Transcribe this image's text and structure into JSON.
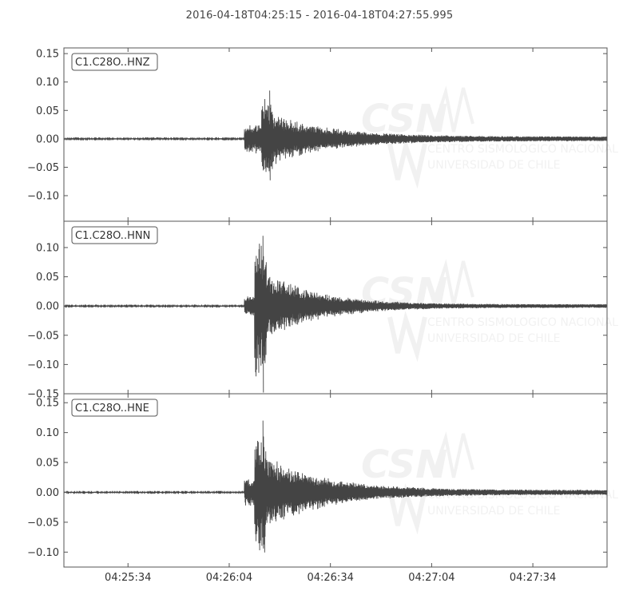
{
  "chart_data": {
    "type": "line",
    "title": "2016-04-18T04:25:15  -  2016-04-18T04:27:55.995",
    "x_tick_labels": [
      "04:25:34",
      "04:26:04",
      "04:26:34",
      "04:27:04",
      "04:27:34"
    ],
    "x_ticks_seconds_after_start": [
      19,
      49,
      79,
      109,
      139
    ],
    "x_range_seconds_after_start": [
      0,
      160.995
    ],
    "line_color": "#444444",
    "watermark": {
      "logo_text": "CSN",
      "line1": "CENTRO SISMOLOGICO NACIONAL",
      "line2": "UNIVERSIDAD DE CHILE"
    },
    "panels": [
      {
        "label": "C1.C28O..HNZ",
        "ylim": [
          -0.145,
          0.16
        ],
        "yticks": [
          0.15,
          0.1,
          0.05,
          0.0,
          -0.05,
          -0.1
        ],
        "ytick_labels": [
          "0.15",
          "0.10",
          "0.05",
          "0.00",
          "−0.05",
          "−0.10"
        ],
        "trace": {
          "onset_s": 53.5,
          "peak_s": 61.0,
          "peak_pos": 0.085,
          "peak_neg": -0.073,
          "pre_amp": 0.001,
          "p_amp": 0.022,
          "tail_amp": 0.004,
          "decay_s": 17
        }
      },
      {
        "label": "C1.C28O..HNN",
        "ylim": [
          -0.15,
          0.145
        ],
        "yticks": [
          0.1,
          0.05,
          0.0,
          -0.05,
          -0.1,
          -0.15
        ],
        "ytick_labels": [
          "0.10",
          "0.05",
          "0.00",
          "−0.05",
          "−0.10",
          "−0.15"
        ],
        "trace": {
          "onset_s": 53.5,
          "peak_s": 59.0,
          "peak_pos": 0.12,
          "peak_neg": -0.148,
          "pre_amp": 0.001,
          "p_amp": 0.015,
          "tail_amp": 0.003,
          "decay_s": 15
        }
      },
      {
        "label": "C1.C28O..HNE",
        "ylim": [
          -0.125,
          0.165
        ],
        "yticks": [
          0.15,
          0.1,
          0.05,
          0.0,
          -0.05,
          -0.1
        ],
        "ytick_labels": [
          "0.15",
          "0.10",
          "0.05",
          "0.00",
          "−0.05",
          "−0.10"
        ],
        "trace": {
          "onset_s": 53.5,
          "peak_s": 59.0,
          "peak_pos": 0.12,
          "peak_neg": -0.094,
          "pre_amp": 0.001,
          "p_amp": 0.02,
          "tail_amp": 0.004,
          "decay_s": 17
        }
      }
    ]
  }
}
